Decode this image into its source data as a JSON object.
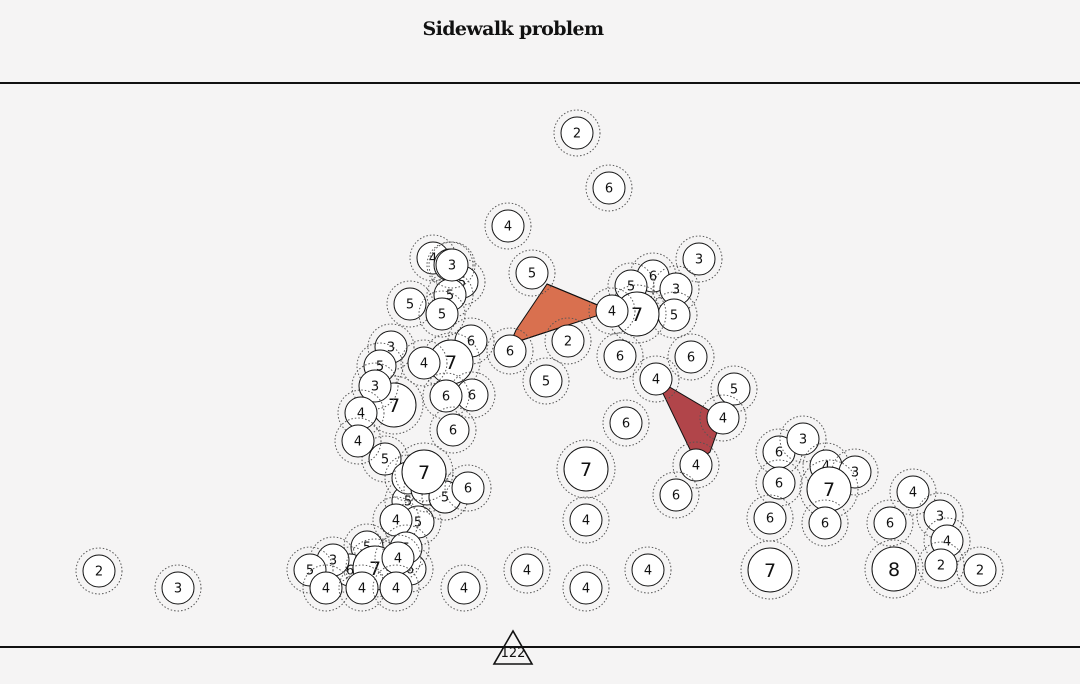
{
  "title": "Sidewalk problem",
  "colors": {
    "background": "#f5f4f4",
    "node_fill": "#ffffff",
    "stroke": "#111111",
    "shape_orange": "#d9704f",
    "shape_red": "#b1454a"
  },
  "marker": {
    "label": "122",
    "shape": "triangle"
  },
  "nodes": [
    {
      "v": "2"
    },
    {
      "v": "6"
    },
    {
      "v": "4"
    },
    {
      "v": "3"
    },
    {
      "v": "4"
    },
    {
      "v": "3"
    },
    {
      "v": "5"
    },
    {
      "v": "5"
    },
    {
      "v": "5"
    },
    {
      "v": "5"
    },
    {
      "v": "5"
    },
    {
      "v": "6"
    },
    {
      "v": "3"
    },
    {
      "v": "5"
    },
    {
      "v": "5"
    },
    {
      "v": "7"
    },
    {
      "v": "6"
    },
    {
      "v": "3"
    },
    {
      "v": "7"
    },
    {
      "v": "4"
    },
    {
      "v": "2"
    },
    {
      "v": "6"
    },
    {
      "v": "6"
    },
    {
      "v": "6"
    },
    {
      "v": "5"
    },
    {
      "v": "4"
    },
    {
      "v": "7"
    },
    {
      "v": "6"
    },
    {
      "v": "5"
    },
    {
      "v": "3"
    },
    {
      "v": "6"
    },
    {
      "v": "4"
    },
    {
      "v": "5"
    },
    {
      "v": "3"
    },
    {
      "v": "6"
    },
    {
      "v": "7"
    },
    {
      "v": "6"
    },
    {
      "v": "4"
    },
    {
      "v": "5"
    },
    {
      "v": "4"
    },
    {
      "v": "4"
    },
    {
      "v": "4"
    },
    {
      "v": "5"
    },
    {
      "v": "5"
    },
    {
      "v": "4"
    },
    {
      "v": "6"
    },
    {
      "v": "5"
    },
    {
      "v": "6"
    },
    {
      "v": "3"
    },
    {
      "v": "4"
    },
    {
      "v": "7"
    },
    {
      "v": "5"
    },
    {
      "v": "6"
    },
    {
      "v": "5"
    },
    {
      "v": "4"
    },
    {
      "v": "5"
    },
    {
      "v": "4"
    },
    {
      "v": "6"
    },
    {
      "v": "6"
    },
    {
      "v": "7"
    },
    {
      "v": "4"
    },
    {
      "v": "4"
    },
    {
      "v": "4"
    },
    {
      "v": "4"
    },
    {
      "v": "4"
    },
    {
      "v": "4"
    },
    {
      "v": "4"
    },
    {
      "v": "7"
    },
    {
      "v": "4"
    },
    {
      "v": "6"
    },
    {
      "v": "3"
    },
    {
      "v": "6"
    },
    {
      "v": "4"
    },
    {
      "v": "3"
    },
    {
      "v": "7"
    },
    {
      "v": "6"
    },
    {
      "v": "6"
    },
    {
      "v": "4"
    },
    {
      "v": "3"
    },
    {
      "v": "6"
    },
    {
      "v": "4"
    },
    {
      "v": "8"
    },
    {
      "v": "2"
    },
    {
      "v": "2"
    },
    {
      "v": "2"
    },
    {
      "v": "3"
    }
  ]
}
